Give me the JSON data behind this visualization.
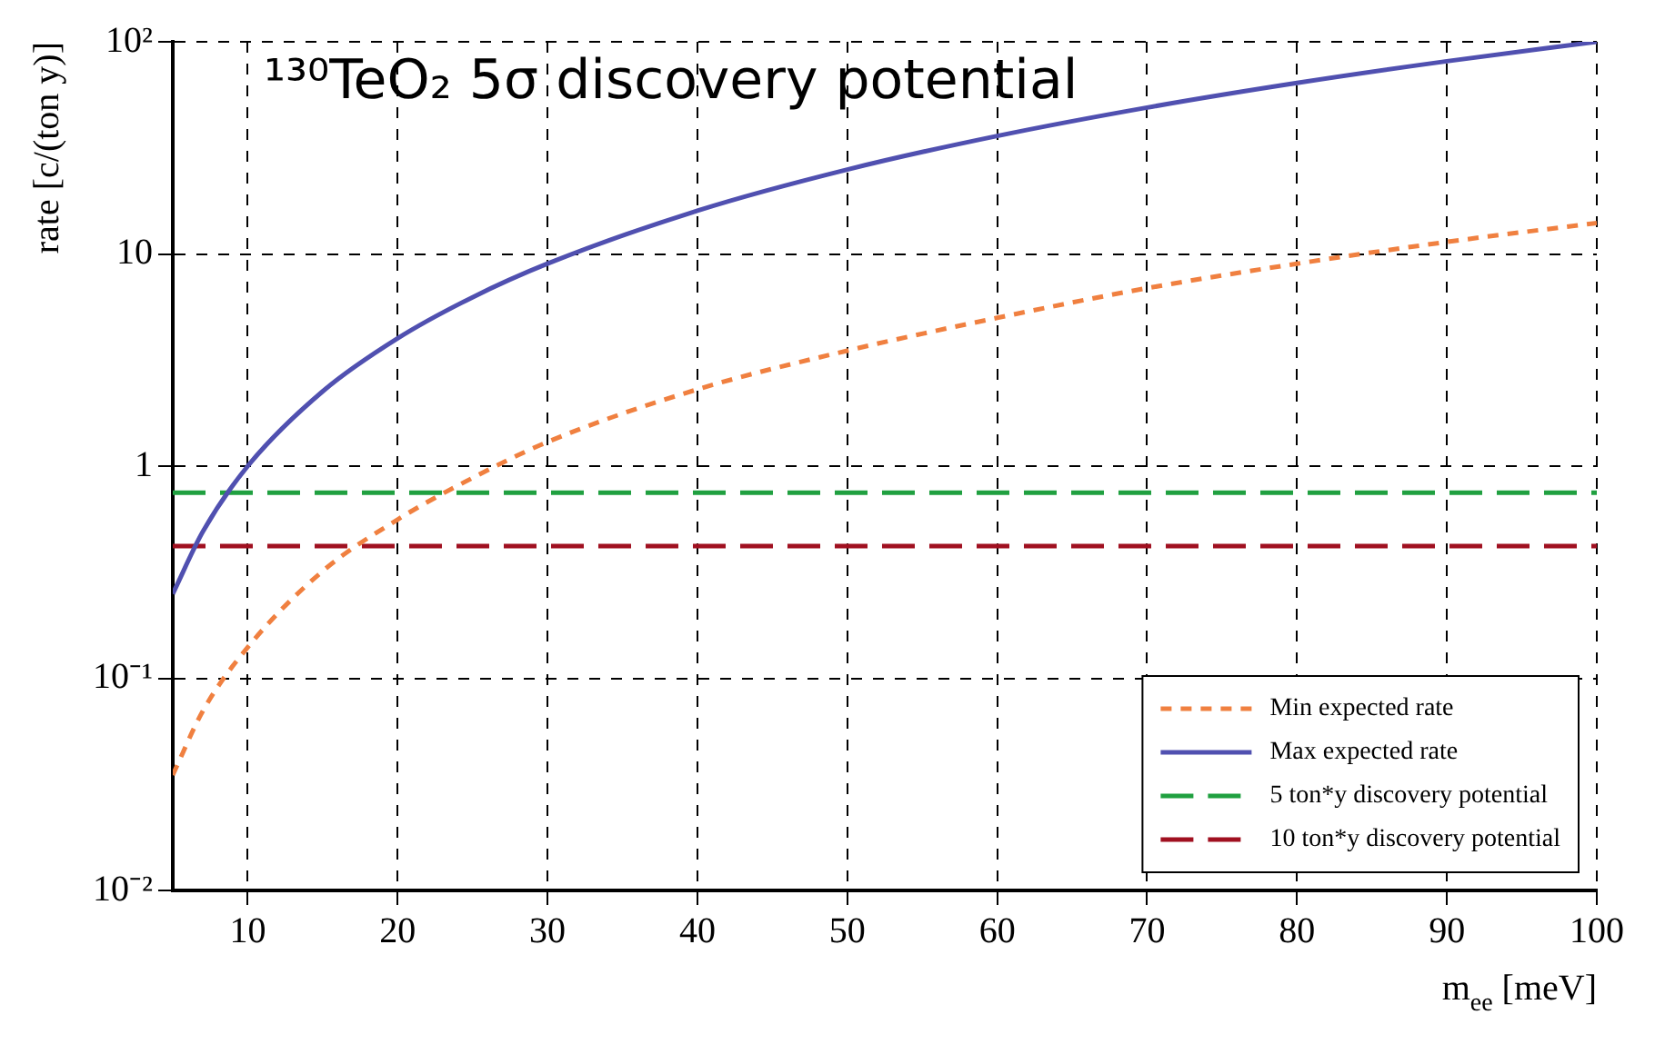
{
  "chart_data": {
    "type": "line",
    "title": "¹³⁰TeO₂ 5σ discovery potential",
    "xlabel": "m$_{ee}$ [meV]",
    "ylabel": "rate [c/(ton y)]",
    "x": [
      5,
      7,
      10,
      15,
      20,
      25,
      30,
      40,
      50,
      60,
      70,
      80,
      90,
      100
    ],
    "xlim": [
      5,
      100
    ],
    "xticks": [
      10,
      20,
      30,
      40,
      50,
      60,
      70,
      80,
      90,
      100
    ],
    "ylim": [
      0.01,
      100
    ],
    "yticks": [
      {
        "value": 0.01,
        "label": "10⁻²"
      },
      {
        "value": 0.1,
        "label": "10⁻¹"
      },
      1,
      10,
      {
        "value": 100,
        "label": "10²"
      }
    ],
    "log": "y",
    "grid": true,
    "legend": "bottom right",
    "marker": "none",
    "series": [
      {
        "name": "Min expected rate",
        "color": "#f08040",
        "line_style": "dotted",
        "values": [
          0.035,
          0.07,
          0.14,
          0.32,
          0.56,
          0.88,
          1.3,
          2.3,
          3.5,
          5,
          6.9,
          9,
          11.4,
          14
        ]
      },
      {
        "name": "Max expected rate",
        "color": "#5050b0",
        "line_style": "solid",
        "values": [
          0.25,
          0.49,
          1,
          2.25,
          4,
          6.25,
          9,
          16,
          25,
          36,
          49,
          64,
          81,
          100
        ]
      },
      {
        "name": "5 ton*y discovery potential",
        "color": "#20a040",
        "line_style": "dashed",
        "values": [
          0.75,
          0.75,
          0.75,
          0.75,
          0.75,
          0.75,
          0.75,
          0.75,
          0.75,
          0.75,
          0.75,
          0.75,
          0.75,
          0.75
        ]
      },
      {
        "name": "10 ton*y discovery potential",
        "color": "#a01020",
        "line_style": "dashed",
        "values": [
          0.42,
          0.42,
          0.42,
          0.42,
          0.42,
          0.42,
          0.42,
          0.42,
          0.42,
          0.42,
          0.42,
          0.42,
          0.42,
          0.42
        ]
      }
    ]
  }
}
